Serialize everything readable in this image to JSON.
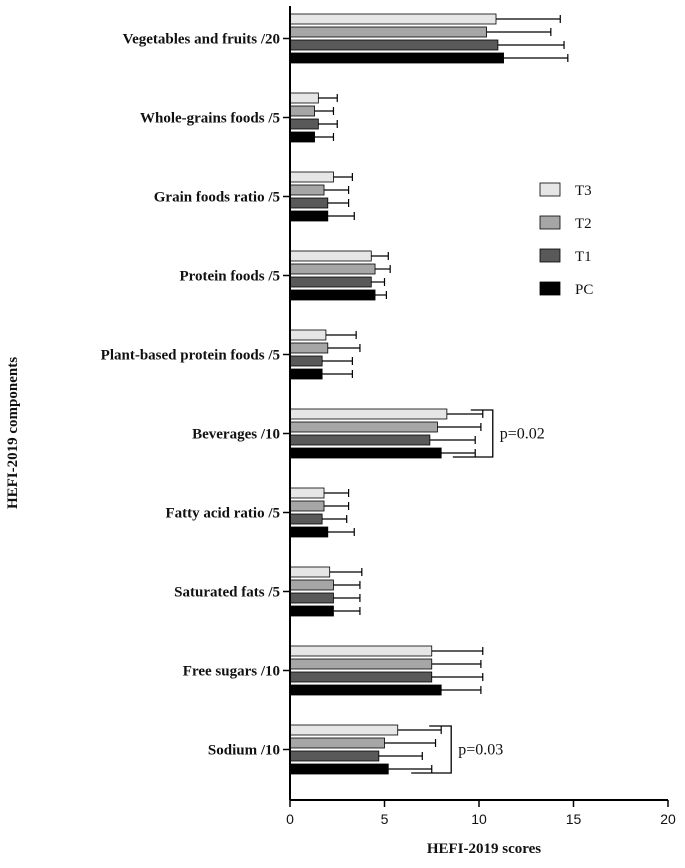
{
  "chart_data": {
    "type": "bar",
    "orientation": "horizontal",
    "title": "",
    "xlabel": "HEFI-2019 scores",
    "ylabel": "HEFI-2019 components",
    "xlim": [
      0,
      20
    ],
    "xticks": [
      0,
      5,
      10,
      15,
      20
    ],
    "grid": false,
    "legend_position": "right",
    "categories": [
      "Vegetables and fruits /20",
      "Whole-grains foods /5",
      "Grain foods ratio /5",
      "Protein foods /5",
      "Plant-based protein foods /5",
      "Beverages /10",
      "Fatty acid ratio /5",
      "Saturated fats /5",
      "Free sugars /10",
      "Sodium /10"
    ],
    "series": [
      {
        "name": "T3",
        "color": "#e6e6e6",
        "values": [
          10.9,
          1.5,
          2.3,
          4.3,
          1.9,
          8.3,
          1.8,
          2.1,
          7.5,
          5.7
        ],
        "errors": [
          3.4,
          1.0,
          1.0,
          0.9,
          1.6,
          1.9,
          1.3,
          1.7,
          2.7,
          2.3
        ]
      },
      {
        "name": "T2",
        "color": "#a6a6a6",
        "values": [
          10.4,
          1.3,
          1.8,
          4.5,
          2.0,
          7.8,
          1.8,
          2.3,
          7.5,
          5.0
        ],
        "errors": [
          3.4,
          1.0,
          1.3,
          0.8,
          1.7,
          2.3,
          1.3,
          1.4,
          2.6,
          2.7
        ]
      },
      {
        "name": "T1",
        "color": "#595959",
        "values": [
          11.0,
          1.5,
          2.0,
          4.3,
          1.7,
          7.4,
          1.7,
          2.3,
          7.5,
          4.7
        ],
        "errors": [
          3.5,
          1.0,
          1.1,
          0.7,
          1.6,
          2.4,
          1.3,
          1.4,
          2.7,
          2.3
        ]
      },
      {
        "name": "PC",
        "color": "#000000",
        "values": [
          11.3,
          1.3,
          2.0,
          4.5,
          1.7,
          8.0,
          2.0,
          2.3,
          8.0,
          5.2
        ],
        "errors": [
          3.4,
          1.0,
          1.4,
          0.6,
          1.6,
          1.8,
          1.4,
          1.4,
          2.1,
          2.3
        ]
      }
    ],
    "annotations": [
      {
        "text": "p=0.02",
        "category": "Beverages /10"
      },
      {
        "text": "p=0.03",
        "category": "Sodium /10"
      }
    ]
  }
}
